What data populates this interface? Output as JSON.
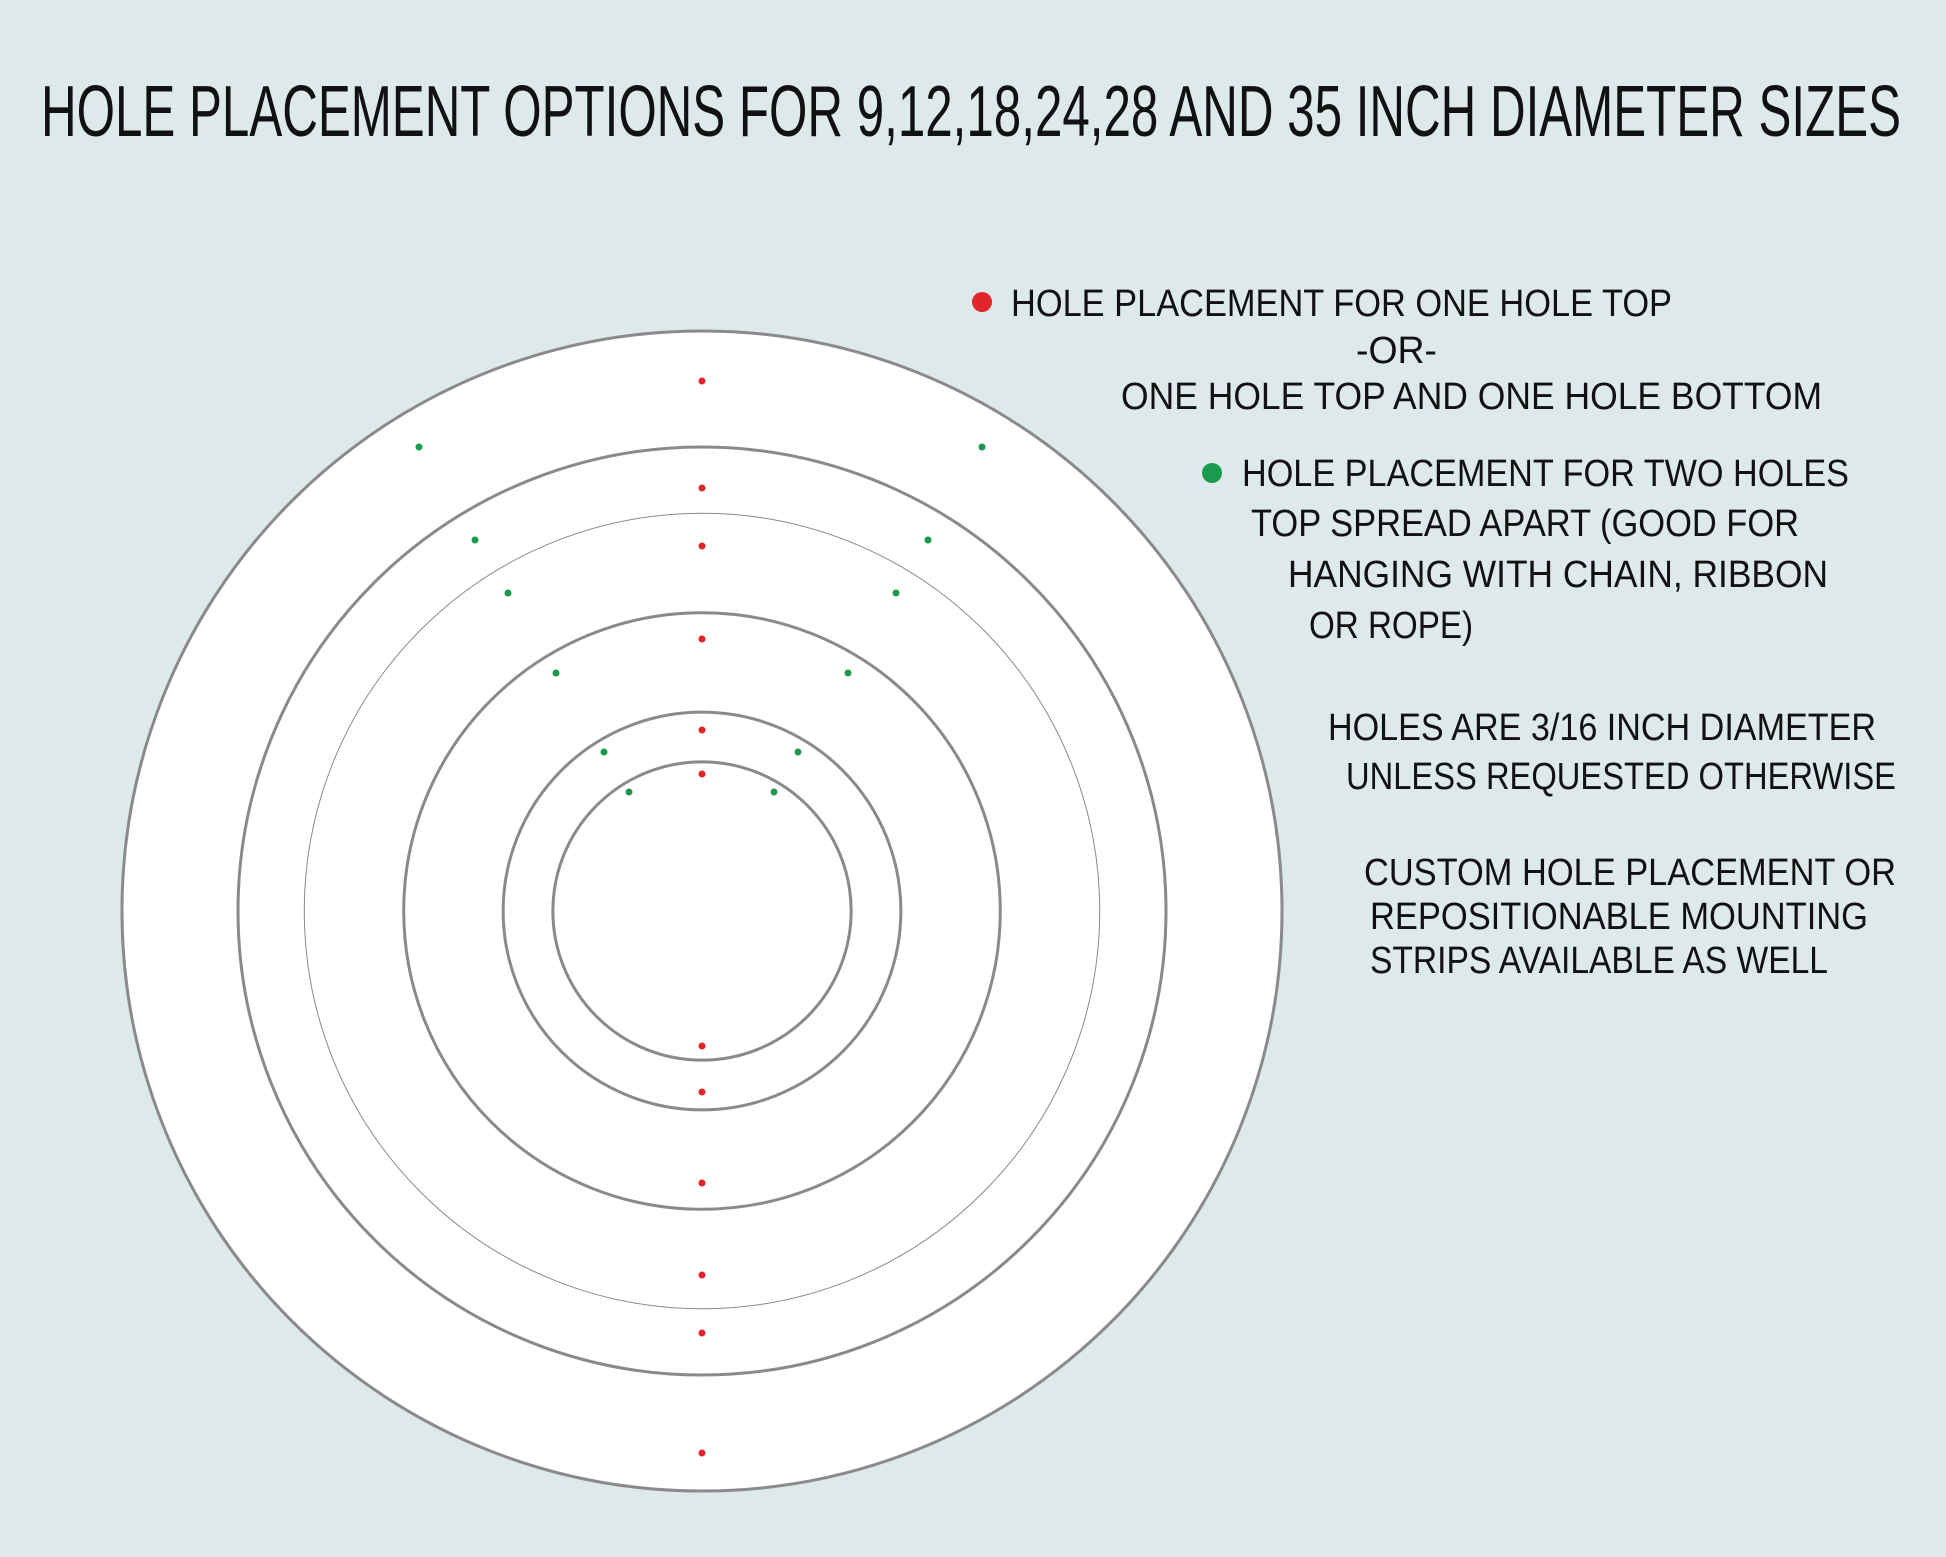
{
  "title": "HOLE PLACEMENT OPTIONS FOR 9,12,18,24,28 AND 35 INCH DIAMETER SIZES",
  "diameters_inches": [
    35,
    28,
    24,
    18,
    12,
    9
  ],
  "colors": {
    "background": "#dde9ea",
    "circle_fill": "#ffffff",
    "circle_stroke": "#8a8a8a",
    "one_hole": "#e0262b",
    "two_holes": "#1a9a4c"
  },
  "legend": {
    "one_hole": [
      "HOLE PLACEMENT FOR ONE HOLE TOP",
      "-OR-",
      "ONE HOLE TOP AND ONE HOLE BOTTOM"
    ],
    "two_holes": [
      "HOLE PLACEMENT FOR TWO HOLES",
      "TOP SPREAD APART (GOOD FOR",
      "HANGING WITH CHAIN, RIBBON",
      "OR ROPE)"
    ]
  },
  "notes": {
    "hole_size": [
      "HOLES ARE 3/16 INCH DIAMETER",
      "UNLESS REQUESTED OTHERWISE"
    ],
    "custom": [
      "CUSTOM HOLE PLACEMENT OR",
      "REPOSITIONABLE MOUNTING",
      "STRIPS AVAILABLE AS WELL"
    ]
  }
}
